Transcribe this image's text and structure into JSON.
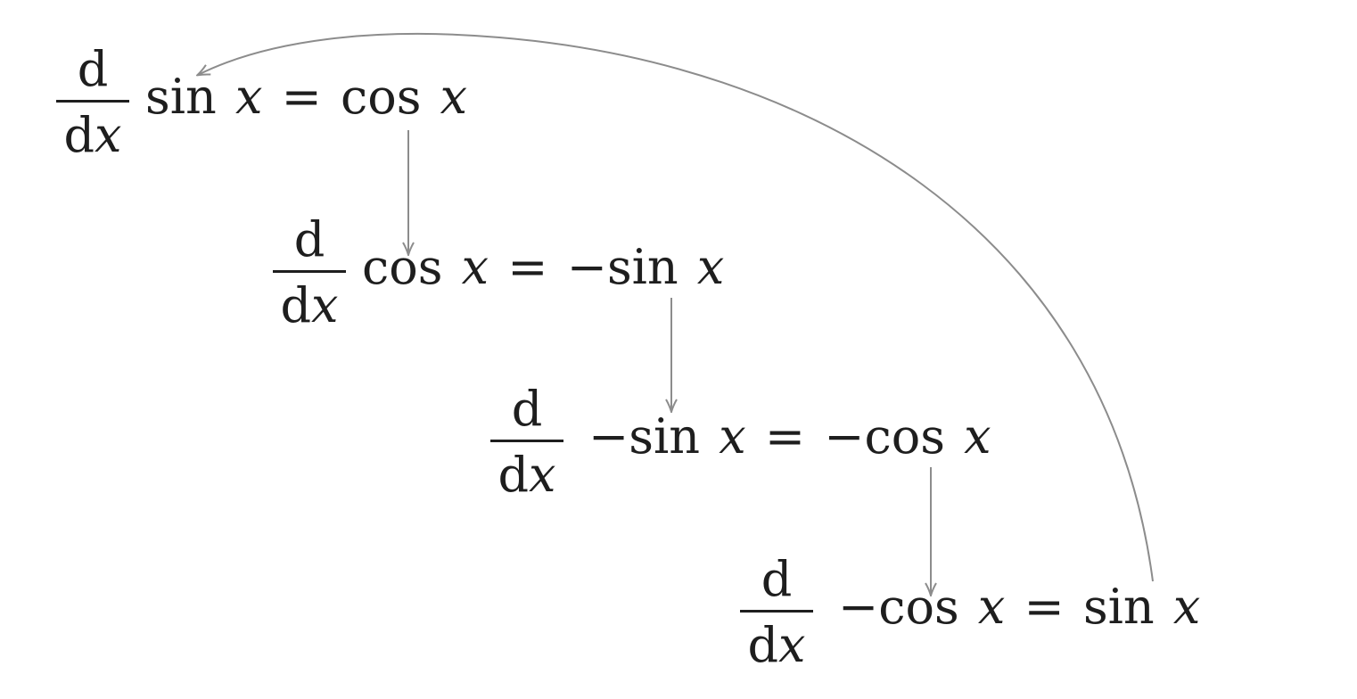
{
  "equations": [
    {
      "frac_num": "d",
      "frac_den_d": "d",
      "frac_den_var": "x",
      "lhs_func": "sin",
      "lhs_var": "x",
      "eq": "=",
      "rhs_func": "cos",
      "rhs_var": "x"
    },
    {
      "frac_num": "d",
      "frac_den_d": "d",
      "frac_den_var": "x",
      "lhs_func": "cos",
      "lhs_var": "x",
      "eq": "=",
      "rhs_func": "−sin",
      "rhs_var": "x"
    },
    {
      "frac_num": "d",
      "frac_den_d": "d",
      "frac_den_var": "x",
      "lhs_func": "−sin",
      "lhs_var": "x",
      "eq": "=",
      "rhs_func": "−cos",
      "rhs_var": "x"
    },
    {
      "frac_num": "d",
      "frac_den_d": "d",
      "frac_den_var": "x",
      "lhs_func": "−cos",
      "lhs_var": "x",
      "eq": "=",
      "rhs_func": "sin",
      "rhs_var": "x"
    }
  ],
  "colors": {
    "text": "#1e1e1e",
    "arrow": "#8c8c8c"
  }
}
